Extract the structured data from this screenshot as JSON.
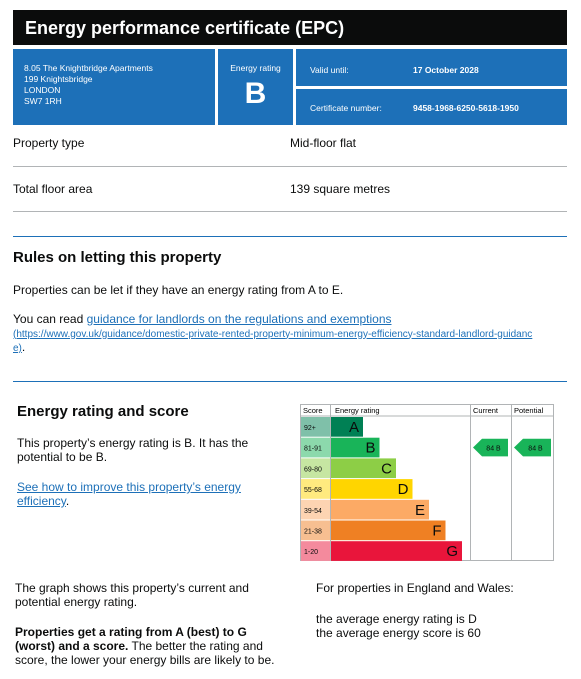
{
  "header": {
    "title": "Energy performance certificate (EPC)"
  },
  "address": [
    "8.05 The Knightbridge Apartments",
    "199 Knightsbridge",
    "LONDON",
    "SW7 1RH"
  ],
  "rating_box": {
    "label": "Energy rating",
    "value": "B"
  },
  "validity": {
    "valid_until_label": "Valid until:",
    "valid_until": "17 October 2028",
    "certificate_label": "Certificate number:",
    "certificate_number": "9458-1968-6250-5618-1950"
  },
  "property": {
    "rows": [
      [
        "Property type",
        "Mid-floor flat"
      ],
      [
        "Total floor area",
        "139 square metres"
      ]
    ]
  },
  "rules": {
    "heading": "Rules on letting this property",
    "paragraph": "Properties can be let if they have an energy rating from A to E.",
    "read_prefix": "You can read ",
    "link": "guidance for landlords on the regulations and exemptions",
    "url": "(https://www.gov.uk/guidance/domestic-private-rented-property-minimum-energy-efficiency-standard-landlord-guidance)",
    "suffix": "."
  },
  "energy": {
    "heading": "Energy rating and score",
    "paragraph": "This property’s energy rating is B. It has the potential to be B.",
    "link": "See how to improve this property’s energy efficiency",
    "link_suffix": ".",
    "graph": {
      "headers": [
        "Score",
        "Energy rating",
        "Current",
        "Potential"
      ],
      "bands": [
        {
          "score": "92+",
          "letter": "A",
          "color": "#008054",
          "score_color": "#7fc0a9"
        },
        {
          "score": "81-91",
          "letter": "B",
          "color": "#19b459",
          "score_color": "#8cd9ac"
        },
        {
          "score": "69-80",
          "letter": "C",
          "color": "#8dce46",
          "score_color": "#c6e6a2"
        },
        {
          "score": "55-68",
          "letter": "D",
          "color": "#ffd500",
          "score_color": "#ffea7f"
        },
        {
          "score": "39-54",
          "letter": "E",
          "color": "#fcaa65",
          "score_color": "#fdd4b2"
        },
        {
          "score": "21-38",
          "letter": "F",
          "color": "#ef8023",
          "score_color": "#f7bf91"
        },
        {
          "score": "1-20",
          "letter": "G",
          "color": "#e9153b",
          "score_color": "#f48a9d"
        }
      ],
      "current": {
        "label": "84 B",
        "band": 1
      },
      "potential": {
        "label": "84 B",
        "band": 1
      }
    },
    "graph_note": "The graph shows this property’s current and potential energy rating.",
    "bold_note": "Properties get a rating from A (best) to G (worst) and a score.",
    "note": " The better the rating and score, the lower your energy bills are likely to be.",
    "region_note": "For properties in England and Wales:",
    "average_rating": "the average energy rating is D",
    "average_score": "the average energy score is 60"
  }
}
